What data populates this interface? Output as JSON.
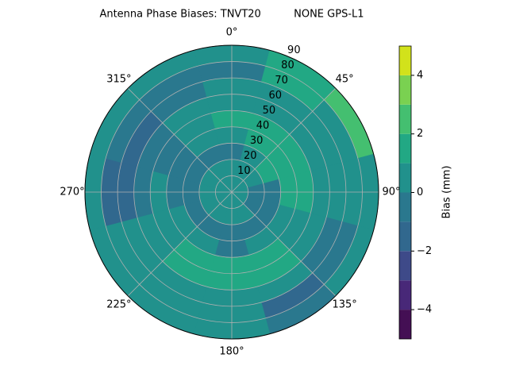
{
  "chart_data": {
    "type": "polar-contour",
    "title": "Antenna Phase Biases: TNVT20          NONE GPS-L1",
    "azimuth": [
      0,
      30,
      60,
      90,
      120,
      150,
      180,
      210,
      240,
      270,
      300,
      330
    ],
    "zenith": [
      0,
      10,
      20,
      30,
      40,
      50,
      60,
      70,
      80
    ],
    "values": [
      [
        0.5,
        0.5,
        0.5,
        0.5,
        0.5,
        0.5,
        0.5,
        0.5,
        0.5,
        0.5,
        0.5,
        0.5
      ],
      [
        0.5,
        0.5,
        0.5,
        -0.5,
        -0.5,
        0.5,
        0.5,
        0.5,
        0.5,
        0.5,
        0.5,
        0.5
      ],
      [
        -0.5,
        0.5,
        1.5,
        -0.5,
        -0.5,
        -0.5,
        -0.5,
        -0.5,
        -0.5,
        -0.5,
        -0.5,
        -0.5
      ],
      [
        0.5,
        1.5,
        1.5,
        1.5,
        0.5,
        0.5,
        -0.5,
        0.5,
        0.5,
        -0.5,
        -0.5,
        0.5
      ],
      [
        1.5,
        1.5,
        1.5,
        1.5,
        0.5,
        1.5,
        1.5,
        1.5,
        0.5,
        0.5,
        -0.5,
        0.5
      ],
      [
        0.5,
        0.5,
        0.5,
        0.5,
        0.5,
        1.5,
        1.5,
        1.5,
        0.5,
        -0.5,
        -0.5,
        0.5
      ],
      [
        0.5,
        0.5,
        0.5,
        0.5,
        -0.5,
        0.5,
        0.5,
        0.5,
        0.5,
        -1.5,
        -1.5,
        -0.5
      ],
      [
        -0.5,
        1.5,
        0.5,
        0.5,
        -0.5,
        -1.5,
        0.5,
        0.5,
        0.5,
        -1.5,
        -0.5,
        -0.5
      ],
      [
        0.5,
        1.5,
        2.5,
        0.5,
        0.5,
        -0.5,
        0.5,
        0.5,
        0.5,
        0.5,
        0.5,
        0.5
      ]
    ],
    "rlim": [
      0,
      90
    ],
    "rticks": [
      10,
      20,
      30,
      40,
      50,
      60,
      70,
      80,
      90
    ],
    "thetaticks": [
      {
        "value": 0,
        "label": "0°"
      },
      {
        "value": 45,
        "label": "45°"
      },
      {
        "value": 90,
        "label": "90°"
      },
      {
        "value": 135,
        "label": "135°"
      },
      {
        "value": 180,
        "label": "180°"
      },
      {
        "value": 225,
        "label": "225°"
      },
      {
        "value": 270,
        "label": "270°"
      },
      {
        "value": 315,
        "label": "315°"
      }
    ],
    "grid": true,
    "levels": [
      -5,
      -4,
      -3,
      -2,
      -1,
      0,
      1,
      2,
      3,
      4,
      5
    ],
    "colors": [
      "#440f54",
      "#482878",
      "#3e4a89",
      "#31688e",
      "#2a788e",
      "#21918c",
      "#22a884",
      "#44bf70",
      "#7ad151",
      "#d2e21b"
    ],
    "colorbar_label": "Bias (mm)",
    "cticks": [
      {
        "value": -4,
        "label": "−4"
      },
      {
        "value": -2,
        "label": "−2"
      },
      {
        "value": 0,
        "label": "0"
      },
      {
        "value": 2,
        "label": "2"
      },
      {
        "value": 4,
        "label": "4"
      }
    ]
  }
}
